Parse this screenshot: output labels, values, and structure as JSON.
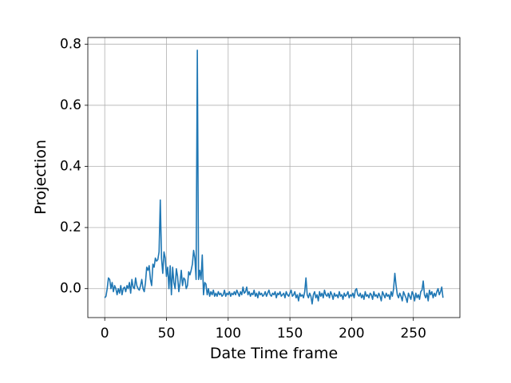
{
  "chart_data": {
    "type": "line",
    "xlabel": "Date Time frame",
    "ylabel": "Projection",
    "x": [
      0,
      1,
      2,
      3,
      4,
      5,
      6,
      7,
      8,
      9,
      10,
      11,
      12,
      13,
      14,
      15,
      16,
      17,
      18,
      19,
      20,
      21,
      22,
      23,
      24,
      25,
      26,
      27,
      28,
      29,
      30,
      31,
      32,
      33,
      34,
      35,
      36,
      37,
      38,
      39,
      40,
      41,
      42,
      43,
      44,
      45,
      46,
      47,
      48,
      49,
      50,
      51,
      52,
      53,
      54,
      55,
      56,
      57,
      58,
      59,
      60,
      61,
      62,
      63,
      64,
      65,
      66,
      67,
      68,
      69,
      70,
      71,
      72,
      73,
      74,
      75,
      76,
      77,
      78,
      79,
      80,
      81,
      82,
      83,
      84,
      85,
      86,
      87,
      88,
      89,
      90,
      91,
      92,
      93,
      94,
      95,
      96,
      97,
      98,
      99,
      100,
      101,
      102,
      103,
      104,
      105,
      106,
      107,
      108,
      109,
      110,
      111,
      112,
      113,
      114,
      115,
      116,
      117,
      118,
      119,
      120,
      121,
      122,
      123,
      124,
      125,
      126,
      127,
      128,
      129,
      130,
      131,
      132,
      133,
      134,
      135,
      136,
      137,
      138,
      139,
      140,
      141,
      142,
      143,
      144,
      145,
      146,
      147,
      148,
      149,
      150,
      151,
      152,
      153,
      154,
      155,
      156,
      157,
      158,
      159,
      160,
      161,
      162,
      163,
      164,
      165,
      166,
      167,
      168,
      169,
      170,
      171,
      172,
      173,
      174,
      175,
      176,
      177,
      178,
      179,
      180,
      181,
      182,
      183,
      184,
      185,
      186,
      187,
      188,
      189,
      190,
      191,
      192,
      193,
      194,
      195,
      196,
      197,
      198,
      199,
      200,
      201,
      202,
      203,
      204,
      205,
      206,
      207,
      208,
      209,
      210,
      211,
      212,
      213,
      214,
      215,
      216,
      217,
      218,
      219,
      220,
      221,
      222,
      223,
      224,
      225,
      226,
      227,
      228,
      229,
      230,
      231,
      232,
      233,
      234,
      235,
      236,
      237,
      238,
      239,
      240,
      241,
      242,
      243,
      244,
      245,
      246,
      247,
      248,
      249,
      250,
      251,
      252,
      253,
      254,
      255,
      256,
      257,
      258,
      259,
      260,
      261,
      262,
      263,
      264,
      265,
      266,
      267,
      268,
      269,
      270,
      271,
      272,
      273,
      274
    ],
    "series": [
      {
        "color": "#1f77b4",
        "values": [
          -0.03,
          -0.025,
          0.0,
          0.035,
          0.03,
          0.0,
          0.02,
          -0.01,
          0.01,
          0.0,
          -0.02,
          0.0,
          -0.015,
          0.01,
          -0.02,
          0.0,
          0.005,
          -0.01,
          0.01,
          0.0,
          0.02,
          -0.015,
          0.03,
          0.005,
          0.0,
          0.035,
          0.01,
          0.0,
          -0.005,
          0.01,
          0.03,
          0.0,
          -0.01,
          0.02,
          0.07,
          0.06,
          0.075,
          0.03,
          0.01,
          0.08,
          0.07,
          0.1,
          0.09,
          0.095,
          0.12,
          0.29,
          0.1,
          0.05,
          0.12,
          0.1,
          0.04,
          0.07,
          0.0,
          0.075,
          -0.02,
          0.07,
          0.02,
          0.0,
          0.065,
          0.04,
          -0.01,
          0.02,
          0.06,
          0.01,
          0.035,
          0.03,
          0.0,
          0.01,
          0.055,
          0.045,
          0.06,
          0.08,
          0.125,
          0.1,
          0.03,
          0.78,
          0.03,
          0.06,
          0.03,
          0.11,
          -0.02,
          0.02,
          0.015,
          -0.02,
          0.0,
          -0.025,
          -0.01,
          -0.02,
          -0.005,
          -0.025,
          -0.015,
          -0.025,
          -0.01,
          -0.02,
          -0.015,
          -0.025,
          -0.02,
          -0.005,
          -0.025,
          -0.015,
          -0.02,
          -0.01,
          -0.025,
          -0.015,
          -0.02,
          -0.01,
          -0.02,
          -0.005,
          -0.015,
          -0.025,
          -0.01,
          -0.02,
          0.005,
          -0.015,
          -0.01,
          0.005,
          -0.02,
          -0.01,
          -0.025,
          -0.015,
          -0.02,
          -0.005,
          -0.025,
          -0.015,
          -0.03,
          -0.01,
          -0.02,
          -0.015,
          -0.025,
          -0.02,
          -0.01,
          -0.025,
          -0.015,
          -0.005,
          -0.02,
          -0.025,
          -0.015,
          -0.02,
          -0.01,
          -0.03,
          -0.015,
          -0.02,
          -0.01,
          -0.025,
          -0.02,
          -0.015,
          -0.03,
          -0.01,
          -0.02,
          -0.025,
          -0.015,
          -0.005,
          -0.025,
          -0.02,
          -0.01,
          -0.03,
          -0.02,
          -0.04,
          -0.015,
          -0.025,
          -0.02,
          -0.03,
          -0.01,
          0.035,
          -0.02,
          -0.03,
          -0.015,
          -0.025,
          -0.05,
          -0.02,
          -0.01,
          -0.03,
          -0.02,
          -0.04,
          -0.01,
          -0.025,
          -0.015,
          -0.03,
          -0.005,
          -0.02,
          -0.025,
          -0.015,
          -0.03,
          -0.01,
          -0.02,
          -0.035,
          -0.015,
          -0.025,
          -0.02,
          -0.03,
          -0.01,
          -0.025,
          -0.02,
          -0.035,
          -0.015,
          -0.025,
          -0.02,
          -0.01,
          -0.03,
          -0.02,
          -0.025,
          -0.015,
          -0.03,
          -0.005,
          0.0,
          -0.02,
          -0.025,
          -0.015,
          -0.03,
          -0.02,
          -0.035,
          -0.01,
          -0.025,
          -0.02,
          -0.03,
          -0.015,
          -0.02,
          -0.035,
          -0.01,
          -0.025,
          -0.02,
          -0.03,
          -0.015,
          -0.025,
          -0.04,
          -0.01,
          -0.02,
          -0.03,
          -0.015,
          -0.025,
          -0.02,
          -0.035,
          -0.01,
          -0.025,
          0.0,
          0.05,
          0.01,
          -0.02,
          -0.03,
          -0.015,
          -0.025,
          -0.04,
          -0.01,
          -0.02,
          -0.03,
          -0.045,
          -0.015,
          -0.025,
          -0.035,
          -0.01,
          -0.02,
          -0.04,
          -0.015,
          -0.03,
          -0.02,
          -0.035,
          -0.01,
          -0.005,
          0.025,
          -0.02,
          -0.03,
          -0.015,
          -0.04,
          -0.005,
          -0.02,
          -0.01,
          -0.03,
          -0.015,
          -0.025,
          -0.01,
          0.0,
          -0.02,
          -0.01,
          0.005,
          -0.03
        ]
      }
    ],
    "xlim": [
      -13.7,
      287.7
    ],
    "ylim": [
      -0.0947,
      0.8217
    ],
    "xticks": [
      0,
      50,
      100,
      150,
      200,
      250
    ],
    "yticks": [
      {
        "value": 0,
        "label": "0.0"
      },
      0.2,
      0.4,
      0.6,
      0.8
    ],
    "grid": true
  }
}
